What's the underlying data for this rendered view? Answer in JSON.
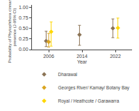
{
  "chart_data": {
    "type": "scatter",
    "x": [
      2006,
      2014,
      2022
    ],
    "series": [
      {
        "name": "Dharawal",
        "color": "#8B7355",
        "marker": "diamond",
        "values": [
          0.2,
          0.35,
          0.5
        ],
        "ci_low": [
          0.07,
          0.1,
          0.28
        ],
        "ci_high": [
          0.43,
          0.57,
          0.72
        ]
      },
      {
        "name": "Georges River/ Kamay/ Botany Bay",
        "color": "#DAA520",
        "marker": "diamond",
        "values": [
          0.18,
          null,
          null
        ],
        "ci_low": [
          0.06,
          null,
          null
        ],
        "ci_high": [
          0.38,
          null,
          null
        ]
      },
      {
        "name": "Royal / Heathcote / Garawarra",
        "color": "#FFD700",
        "marker": "diamond",
        "values": [
          0.42,
          null,
          0.51
        ],
        "ci_low": [
          0.08,
          null,
          0.27
        ],
        "ci_high": [
          0.65,
          null,
          0.74
        ]
      }
    ],
    "xlim": [
      2002,
      2026
    ],
    "ylim": [
      0.0,
      1.05
    ],
    "xticks": [
      2006,
      2014,
      2022
    ],
    "yticks": [
      {
        "value": 0.0,
        "label": "0.00"
      },
      0.25,
      {
        "value": 0.5,
        "label": "0.50"
      },
      0.75,
      {
        "value": 1.0,
        "label": "1.00"
      }
    ],
    "xlabel": "Year",
    "ylabel": "Probability of Phytophthora cinnamomi\npresence (J-95% CI)",
    "grid": false,
    "legend": "bottom"
  }
}
